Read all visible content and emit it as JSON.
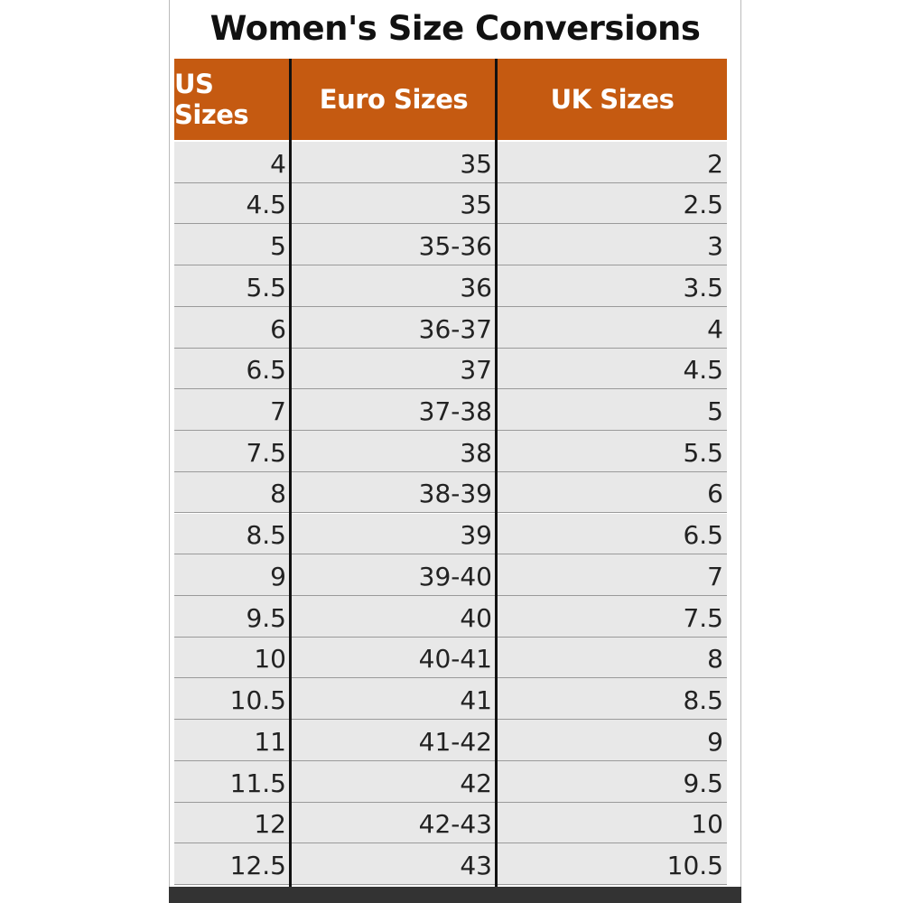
{
  "title": "Women's Size Conversions",
  "table": {
    "header": [
      "US Sizes",
      "Euro Sizes",
      "UK Sizes"
    ],
    "rows": [
      [
        "4",
        "35",
        "2"
      ],
      [
        "4.5",
        "35",
        "2.5"
      ],
      [
        "5",
        "35-36",
        "3"
      ],
      [
        "5.5",
        "36",
        "3.5"
      ],
      [
        "6",
        "36-37",
        "4"
      ],
      [
        "6.5",
        "37",
        "4.5"
      ],
      [
        "7",
        "37-38",
        "5"
      ],
      [
        "7.5",
        "38",
        "5.5"
      ],
      [
        "8",
        "38-39",
        "6"
      ],
      [
        "8.5",
        "39",
        "6.5"
      ],
      [
        "9",
        "39-40",
        "7"
      ],
      [
        "9.5",
        "40",
        "7.5"
      ],
      [
        "10",
        "40-41",
        "8"
      ],
      [
        "10.5",
        "41",
        "8.5"
      ],
      [
        "11",
        "41-42",
        "9"
      ],
      [
        "11.5",
        "42",
        "9.5"
      ],
      [
        "12",
        "42-43",
        "10"
      ],
      [
        "12.5",
        "43",
        "10.5"
      ]
    ]
  }
}
